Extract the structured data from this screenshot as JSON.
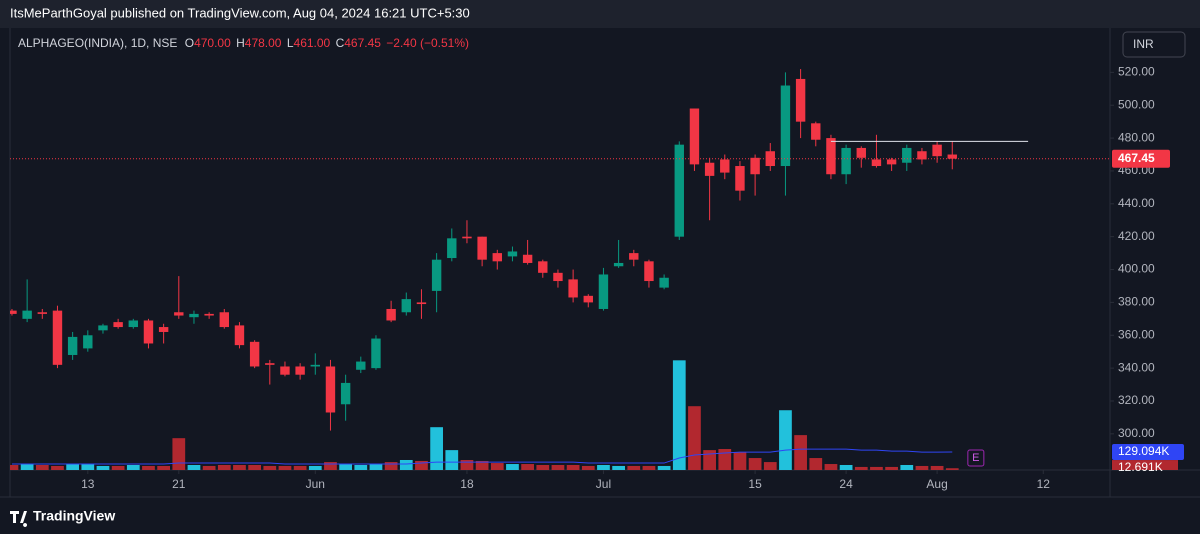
{
  "header": "ItsMeParthGoyal published on TradingView.com, Aug 04, 2024 16:21 UTC+5:30",
  "footer": "TradingView",
  "currency_button": "INR",
  "chart_data": {
    "type": "candlestick",
    "title": "ALPHAGEO(INDIA), 1D, NSE",
    "legend_fields": [
      [
        "O",
        "470.00"
      ],
      [
        "H",
        "478.00"
      ],
      [
        "L",
        "461.00"
      ],
      [
        "C",
        "467.45"
      ]
    ],
    "legend_change": "−2.40 (−0.51%)",
    "last_price_label": "467.45",
    "volume_ma_label": "129.094K",
    "volume_label": "12.691K",
    "event_marker": "E",
    "up_color": "#089981",
    "down_color": "#f23645",
    "volume_up_color": "#22c1dc",
    "volume_down_color": "#b2282f",
    "volume_ma_color": "#2f45f5",
    "categories": [
      null,
      null,
      null,
      null,
      null,
      "13",
      null,
      null,
      null,
      null,
      null,
      "21",
      null,
      null,
      null,
      null,
      null,
      null,
      null,
      null,
      "Jun",
      null,
      null,
      null,
      null,
      null,
      null,
      null,
      null,
      null,
      "18",
      null,
      null,
      null,
      null,
      null,
      null,
      null,
      null,
      "Jul",
      null,
      null,
      null,
      null,
      null,
      null,
      null,
      null,
      null,
      "15",
      null,
      null,
      null,
      null,
      null,
      "24",
      null,
      null,
      null,
      null,
      null,
      "Aug",
      null
    ],
    "open": [
      375,
      370,
      374,
      375,
      348,
      352,
      363,
      368,
      365,
      369,
      365,
      374,
      371,
      373,
      374,
      366,
      356,
      343,
      341,
      341,
      341,
      341,
      318,
      339,
      340,
      376,
      374,
      380,
      387,
      407,
      420,
      420,
      410,
      408,
      409,
      405,
      398,
      394,
      384,
      376,
      402,
      410,
      405,
      389,
      420,
      498,
      465,
      467,
      463,
      468,
      472,
      463,
      516,
      489,
      480,
      458,
      474,
      467,
      467,
      465,
      472,
      476,
      470
    ],
    "high": [
      376,
      394,
      376,
      378,
      362,
      363,
      367,
      370,
      370,
      370,
      367,
      396,
      375,
      374,
      376,
      368,
      357,
      345,
      344,
      343,
      349,
      345,
      336,
      347,
      360,
      381,
      386,
      388,
      410,
      425,
      430,
      420,
      412,
      414,
      418,
      406,
      400,
      400,
      385,
      401,
      418,
      412,
      406,
      397,
      478,
      498,
      468,
      470,
      466,
      470,
      477,
      520,
      522,
      490,
      482,
      476,
      475,
      482,
      468,
      476,
      474,
      478,
      478
    ],
    "low": [
      372,
      368,
      370,
      340,
      345,
      350,
      361,
      364,
      364,
      352,
      355,
      370,
      367,
      370,
      364,
      352,
      340,
      330,
      335,
      333,
      336,
      302,
      308,
      337,
      339,
      368,
      372,
      370,
      374,
      405,
      416,
      402,
      400,
      405,
      403,
      395,
      389,
      380,
      377,
      375,
      401,
      402,
      389,
      388,
      418,
      460,
      430,
      455,
      442,
      445,
      460,
      445,
      480,
      475,
      455,
      452,
      462,
      462,
      460,
      460,
      464,
      465,
      461
    ],
    "close": [
      373,
      375,
      373,
      342,
      359,
      360,
      366,
      365,
      369,
      355,
      362,
      372,
      373,
      372,
      365,
      354,
      341,
      342,
      336,
      336,
      342,
      313,
      331,
      344,
      358,
      369,
      382,
      379,
      406,
      419,
      419,
      406,
      405,
      411,
      404,
      398,
      393,
      383,
      380,
      397,
      404,
      406,
      393,
      395,
      476,
      464,
      457,
      459,
      448,
      458,
      463,
      512,
      490,
      479,
      458,
      474,
      468,
      463,
      464,
      474,
      467,
      469,
      467.45
    ],
    "volume": [
      36,
      43,
      36,
      29,
      43,
      43,
      29,
      29,
      36,
      29,
      29,
      229,
      36,
      29,
      36,
      36,
      36,
      29,
      29,
      29,
      29,
      57,
      43,
      36,
      43,
      57,
      72,
      65,
      308,
      143,
      72,
      65,
      50,
      43,
      43,
      36,
      36,
      36,
      29,
      36,
      29,
      29,
      29,
      29,
      789,
      459,
      143,
      151,
      129,
      86,
      57,
      430,
      251,
      86,
      43,
      36,
      22,
      22,
      22,
      36,
      29,
      29,
      12.691
    ],
    "volume_ma": [
      43,
      43,
      43,
      43,
      43,
      43,
      43,
      43,
      43,
      43,
      43,
      50,
      50,
      50,
      50,
      50,
      50,
      50,
      43,
      43,
      43,
      43,
      43,
      43,
      43,
      43,
      43,
      50,
      57,
      57,
      57,
      57,
      57,
      57,
      57,
      57,
      57,
      57,
      50,
      50,
      50,
      50,
      50,
      50,
      86,
      108,
      115,
      122,
      129,
      129,
      129,
      143,
      150,
      150,
      150,
      150,
      143,
      143,
      136,
      136,
      129,
      129,
      129.094
    ],
    "trendline": {
      "value": 478,
      "x": [
        54,
        67
      ]
    },
    "xlim": [
      -0.13,
      72.4
    ],
    "xticks": [
      {
        "value": 5,
        "label": "13"
      },
      {
        "value": 11,
        "label": "21"
      },
      {
        "value": 20,
        "label": "Jun"
      },
      {
        "value": 30,
        "label": "18"
      },
      {
        "value": 39,
        "label": "Jul"
      },
      {
        "value": 49,
        "label": "15"
      },
      {
        "value": 55,
        "label": "24"
      },
      {
        "value": 61,
        "label": "Aug"
      },
      {
        "value": 68,
        "label": "12"
      }
    ],
    "ylim": [
      278,
      547
    ],
    "yticks": [
      {
        "value": 300,
        "label": "300.00"
      },
      {
        "value": 320,
        "label": "320.00"
      },
      {
        "value": 340,
        "label": "340.00"
      },
      {
        "value": 360,
        "label": "360.00"
      },
      {
        "value": 380,
        "label": "380.00"
      },
      {
        "value": 400,
        "label": "400.00"
      },
      {
        "value": 420,
        "label": "420.00"
      },
      {
        "value": 440,
        "label": "440.00"
      },
      {
        "value": 460,
        "label": "460.00"
      },
      {
        "value": 480,
        "label": "480.00"
      },
      {
        "value": 500,
        "label": "500.00"
      },
      {
        "value": 520,
        "label": "520.00"
      }
    ],
    "volume_lim": [
      0,
      1000
    ]
  }
}
